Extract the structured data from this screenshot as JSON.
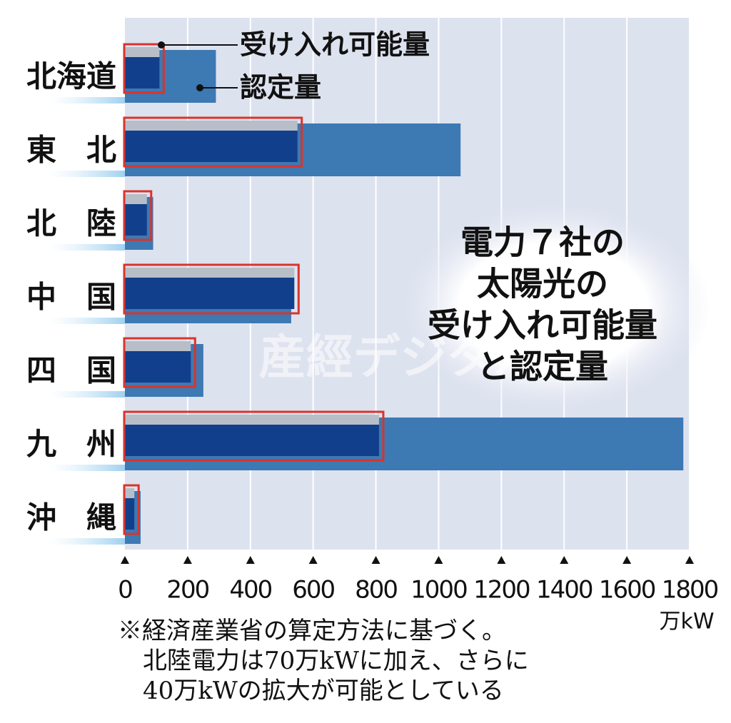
{
  "chart_data": {
    "type": "bar",
    "orientation": "horizontal",
    "title": [
      "電力７社の",
      "太陽光の",
      "受け入れ可能量",
      "と認定量"
    ],
    "categories": [
      "北海道",
      "東　北",
      "北　陸",
      "中　国",
      "四　国",
      "九　州",
      "沖　縄"
    ],
    "series": [
      {
        "name": "受け入れ可能量",
        "color": "#123f8c",
        "values": [
          110,
          550,
          70,
          540,
          210,
          810,
          30
        ]
      },
      {
        "name": "認定量",
        "color": "#3d79b3",
        "values": [
          290,
          1070,
          90,
          530,
          250,
          1780,
          50
        ]
      }
    ],
    "xlim": [
      0,
      1800
    ],
    "xticks": [
      0,
      200,
      400,
      600,
      800,
      1000,
      1200,
      1400,
      1600,
      1800
    ],
    "x_unit": "万kW",
    "grid": true,
    "note": [
      "※経済産業省の算定方法に基づく。",
      "北陸電力は70万kWに加え、さらに",
      "40万kWの拡大が可能としている"
    ],
    "watermark": "産經デジタル"
  }
}
